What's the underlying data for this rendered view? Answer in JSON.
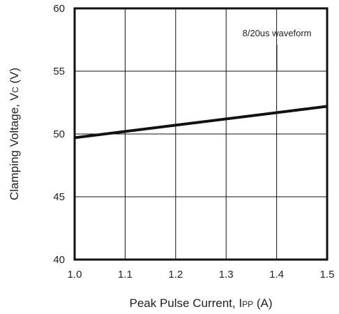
{
  "chart_data": {
    "type": "line",
    "annotation": "8/20us waveform",
    "xlabel": {
      "main": "Peak Pulse Current, I",
      "sub": "PP",
      "unit": " (A)"
    },
    "ylabel": {
      "main": "Clamping Voltage, V",
      "sub": "C",
      "unit": " (V)"
    },
    "xlim": [
      1.0,
      1.5
    ],
    "ylim": [
      40,
      60
    ],
    "xticks": [
      "1.0",
      "1.1",
      "1.2",
      "1.3",
      "1.4",
      "1.5"
    ],
    "yticks": [
      "40",
      "45",
      "50",
      "55",
      "60"
    ],
    "grid": true,
    "series": [
      {
        "x": [
          1.0,
          1.5
        ],
        "y": [
          49.7,
          52.2
        ]
      }
    ],
    "colors": {
      "line": "#111111",
      "grid": "#111111",
      "frame": "#111111"
    }
  }
}
